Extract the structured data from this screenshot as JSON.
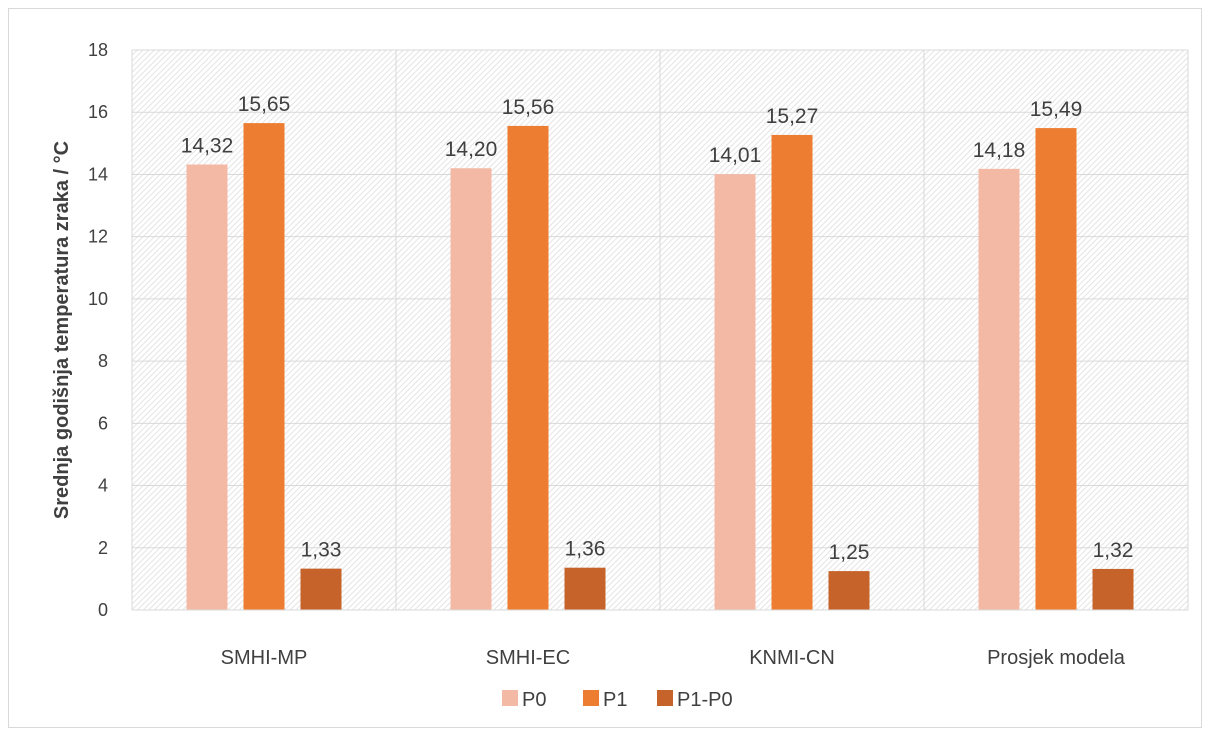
{
  "chart_data": {
    "type": "bar",
    "ylabel": "Srednja godišnja temperatura zraka / °C",
    "xlabel": "",
    "ylim": [
      0,
      18
    ],
    "yticks": [
      0,
      2,
      4,
      6,
      8,
      10,
      12,
      14,
      16,
      18
    ],
    "grid": true,
    "legend_position": "bottom",
    "categories": [
      "SMHI-MP",
      "SMHI-EC",
      "KNMI-CN",
      "Prosjek modela"
    ],
    "series": [
      {
        "name": "P0",
        "color": "#f4b9a5",
        "values": [
          14.32,
          14.2,
          14.01,
          14.18
        ],
        "labels": [
          "14,32",
          "14,20",
          "14,01",
          "14,18"
        ]
      },
      {
        "name": "P1",
        "color": "#ed7d31",
        "values": [
          15.65,
          15.56,
          15.27,
          15.49
        ],
        "labels": [
          "15,65",
          "15,56",
          "15,27",
          "15,49"
        ]
      },
      {
        "name": "P1-P0",
        "color": "#c5632a",
        "values": [
          1.33,
          1.36,
          1.25,
          1.32
        ],
        "labels": [
          "1,33",
          "1,36",
          "1,25",
          "1,32"
        ]
      }
    ]
  }
}
